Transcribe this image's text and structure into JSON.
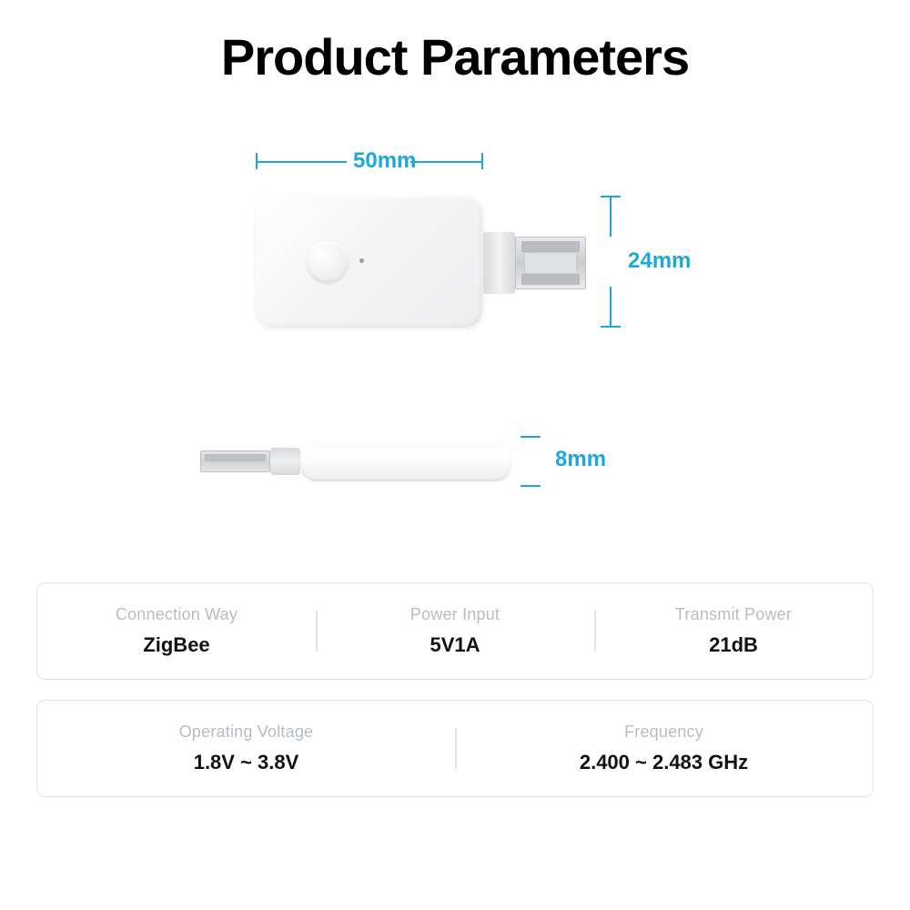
{
  "title": "Product Parameters",
  "accent_color": "#1CA8DD",
  "dimensions": {
    "width": "50mm",
    "height": "24mm",
    "thickness": "8mm"
  },
  "spec_rows": [
    [
      {
        "label": "Connection Way",
        "value": "ZigBee"
      },
      {
        "label": "Power Input",
        "value": "5V1A"
      },
      {
        "label": "Transmit Power",
        "value": "21dB"
      }
    ],
    [
      {
        "label": "Operating Voltage",
        "value": "1.8V ~ 3.8V"
      },
      {
        "label": "Frequency",
        "value": "2.400 ~ 2.483 GHz"
      }
    ]
  ]
}
